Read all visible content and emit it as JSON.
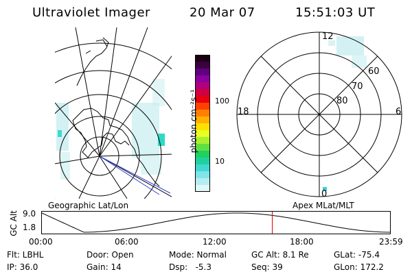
{
  "header": {
    "title": "Ultraviolet Imager",
    "date": "20 Mar 07",
    "time": "15:51:03 UT"
  },
  "colorbar": {
    "unit_label": "photon cm⁻²s⁻¹",
    "ticks": [
      "100",
      "10"
    ],
    "colors_top_to_bottom": [
      "#1a0010",
      "#3a0040",
      "#600080",
      "#8a00a0",
      "#b00080",
      "#d00040",
      "#e80010",
      "#ff4000",
      "#ff8000",
      "#ffb000",
      "#ffe000",
      "#e8ff20",
      "#a8f030",
      "#60e040",
      "#20d060",
      "#20d0a0",
      "#40d8d0",
      "#80e4e8",
      "#b4eef0",
      "#e0f8fa"
    ]
  },
  "right_map": {
    "mlt_labels": {
      "top": "12",
      "left": "18",
      "right": "6",
      "bottom": "0"
    },
    "lat_labels": [
      "60",
      "70",
      "80"
    ]
  },
  "map_labels": {
    "left": "Geographic Lat/Lon",
    "right": "Apex MLat/MLT"
  },
  "altitude_plot": {
    "axis_title": "GC Alt",
    "y_max_label": "9.0",
    "y_min_label": "1.8",
    "x_ticks": [
      "00:00",
      "06:00",
      "12:00",
      "18:00",
      "23:59"
    ],
    "current_time_fraction": 0.6605
  },
  "footer": {
    "flt": "Flt: LBHL",
    "ip": "IP: 36.0",
    "door": "Door: Open",
    "gain": "Gain: 14",
    "mode": "Mode: Normal",
    "dsp": "Dsp:   -5.3",
    "gc_alt": "GC Alt: 8.1 Re",
    "seq": "Seq: 39",
    "glat": "GLat: -75.4",
    "glon": "GLon: 172.2"
  }
}
